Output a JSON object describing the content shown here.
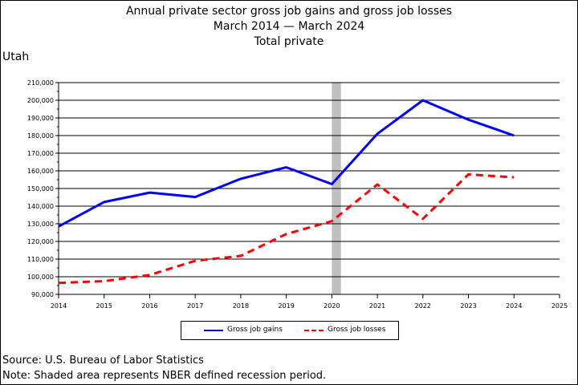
{
  "title_lines": [
    "Annual private sector gross job gains and gross job losses",
    "March 2014 — March 2024",
    "Total private"
  ],
  "region_label": "Utah",
  "footnotes": {
    "source": "Source: U.S. Bureau of Labor Statistics",
    "note": "Note: Shaded area represents NBER defined recession period."
  },
  "chart_data": {
    "type": "line",
    "x": [
      2014,
      2015,
      2016,
      2017,
      2018,
      2019,
      2020,
      2021,
      2022,
      2023,
      2024
    ],
    "xlim": [
      2014,
      2025
    ],
    "ylim": [
      90000,
      210000
    ],
    "x_ticks": [
      "2014",
      "2015",
      "2016",
      "2017",
      "2018",
      "2019",
      "2020",
      "2021",
      "2022",
      "2023",
      "2024",
      "2025"
    ],
    "y_ticks": [
      "90,000",
      "100,000",
      "110,000",
      "120,000",
      "130,000",
      "140,000",
      "150,000",
      "160,000",
      "170,000",
      "180,000",
      "190,000",
      "200,000",
      "210,000"
    ],
    "y_tick_values": [
      90000,
      100000,
      110000,
      120000,
      130000,
      140000,
      150000,
      160000,
      170000,
      180000,
      190000,
      200000,
      210000
    ],
    "grid": "horizontal",
    "legend_position": "bottom-center",
    "recession_shading": {
      "start": 2020,
      "end": 2020.2,
      "color": "#c0c0c0"
    },
    "series": [
      {
        "name": "Gross job gains",
        "color": "#0000ff",
        "style": "solid",
        "values": [
          128500,
          142300,
          147700,
          145200,
          155500,
          162000,
          152500,
          181000,
          200000,
          189000,
          180000
        ]
      },
      {
        "name": "Gross job losses",
        "color": "#ff0000",
        "style": "dashed",
        "values": [
          96500,
          97500,
          101000,
          109000,
          111800,
          124200,
          131500,
          152300,
          132800,
          158000,
          156300
        ]
      }
    ]
  }
}
